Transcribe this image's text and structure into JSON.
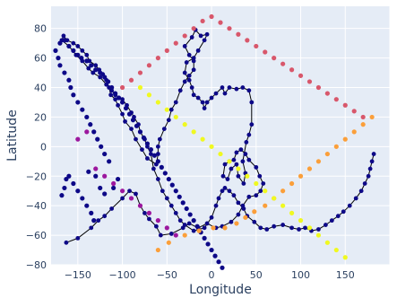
{
  "chart_data": {
    "type": "scatter",
    "title": "",
    "xlabel": "Longitude",
    "ylabel": "Latitude",
    "xlim": [
      -180,
      200
    ],
    "ylim": [
      -80,
      95
    ],
    "xticks": [
      -200,
      -150,
      -100,
      -50,
      0,
      50,
      100,
      150,
      200
    ],
    "yticks": [
      -80,
      -60,
      -40,
      -20,
      0,
      20,
      40,
      60,
      80
    ],
    "grid": true,
    "legend": "none",
    "colors": {
      "background": "#e5ecf6",
      "grid": "#ffffff",
      "path": "#000000",
      "node": "#0d0887"
    },
    "path": [
      [
        -163,
        -65
      ],
      [
        -150,
        -62
      ],
      [
        -135,
        -55
      ],
      [
        -127,
        -50
      ],
      [
        -120,
        -47
      ],
      [
        -112,
        -42
      ],
      [
        -100,
        -35
      ],
      [
        -92,
        -30
      ],
      [
        -85,
        -32
      ],
      [
        -80,
        -40
      ],
      [
        -75,
        -45
      ],
      [
        -70,
        -49
      ],
      [
        -62,
        -54
      ],
      [
        -57,
        -60
      ],
      [
        -45,
        -59
      ],
      [
        -32,
        -55
      ],
      [
        -25,
        -52
      ],
      [
        -15,
        -55
      ],
      [
        -5,
        -52
      ],
      [
        5,
        -55
      ],
      [
        12,
        -54
      ],
      [
        22,
        -51
      ],
      [
        30,
        -46
      ],
      [
        35,
        -40
      ],
      [
        42,
        -34
      ],
      [
        50,
        -33
      ],
      [
        55,
        -30
      ],
      [
        58,
        -25
      ],
      [
        54,
        -20
      ],
      [
        50,
        -14
      ],
      [
        42,
        -9
      ],
      [
        38,
        -5
      ],
      [
        33,
        -2
      ],
      [
        28,
        -4
      ],
      [
        25,
        -9
      ],
      [
        20,
        -10
      ],
      [
        15,
        -12
      ],
      [
        13,
        -20
      ],
      [
        18,
        -22
      ],
      [
        22,
        -15
      ],
      [
        28,
        -12
      ],
      [
        30,
        -20
      ],
      [
        36,
        -25
      ],
      [
        38,
        -18
      ],
      [
        35,
        -10
      ],
      [
        39,
        3
      ],
      [
        42,
        8
      ],
      [
        45,
        15
      ],
      [
        45,
        30
      ],
      [
        42,
        38
      ],
      [
        35,
        40
      ],
      [
        28,
        39
      ],
      [
        20,
        40
      ],
      [
        15,
        36
      ],
      [
        12,
        40
      ],
      [
        5,
        36
      ],
      [
        0,
        33
      ],
      [
        -5,
        30
      ],
      [
        -8,
        26
      ],
      [
        -10,
        30
      ],
      [
        -15,
        33
      ],
      [
        -20,
        35
      ],
      [
        -22,
        40
      ],
      [
        -25,
        45
      ],
      [
        -30,
        50
      ],
      [
        -28,
        57
      ],
      [
        -20,
        60
      ],
      [
        -15,
        65
      ],
      [
        -8,
        72
      ],
      [
        -5,
        76
      ],
      [
        -12,
        75
      ],
      [
        -18,
        79
      ],
      [
        -22,
        74
      ],
      [
        -30,
        68
      ],
      [
        -25,
        62
      ],
      [
        -20,
        58
      ],
      [
        -20,
        52
      ],
      [
        -25,
        48
      ],
      [
        -30,
        44
      ],
      [
        -35,
        38
      ],
      [
        -40,
        30
      ],
      [
        -45,
        25
      ],
      [
        -48,
        18
      ],
      [
        -53,
        12
      ],
      [
        -58,
        5
      ],
      [
        -60,
        0
      ],
      [
        -60,
        -5
      ],
      [
        -62,
        -12
      ],
      [
        -72,
        -8
      ],
      [
        -78,
        -2
      ],
      [
        -85,
        5
      ],
      [
        -90,
        12
      ],
      [
        -97,
        17
      ],
      [
        -100,
        22
      ],
      [
        -105,
        28
      ],
      [
        -108,
        32
      ],
      [
        -113,
        35
      ],
      [
        -115,
        40
      ],
      [
        -118,
        45
      ],
      [
        -122,
        49
      ],
      [
        -126,
        52
      ],
      [
        -130,
        55
      ],
      [
        -137,
        58
      ],
      [
        -140,
        62
      ],
      [
        -145,
        65
      ],
      [
        -150,
        68
      ],
      [
        -155,
        70
      ],
      [
        -162,
        72
      ],
      [
        -166,
        75
      ],
      [
        -168,
        72
      ],
      [
        -160,
        68
      ],
      [
        -152,
        62
      ],
      [
        -145,
        58
      ],
      [
        -138,
        53
      ],
      [
        -133,
        50
      ],
      [
        -125,
        47
      ],
      [
        -118,
        42
      ],
      [
        -112,
        38
      ],
      [
        -108,
        35
      ],
      [
        -100,
        32
      ],
      [
        -95,
        28
      ],
      [
        -90,
        23
      ],
      [
        -87,
        20
      ],
      [
        -82,
        15
      ],
      [
        -80,
        10
      ],
      [
        -75,
        5
      ],
      [
        -72,
        0
      ],
      [
        -68,
        -5
      ],
      [
        -65,
        -15
      ],
      [
        -60,
        -22
      ],
      [
        -55,
        -30
      ],
      [
        -50,
        -35
      ],
      [
        -45,
        -40
      ],
      [
        -40,
        -45
      ],
      [
        -35,
        -50
      ],
      [
        -30,
        -53
      ],
      [
        -20,
        -57
      ],
      [
        -8,
        -55
      ],
      [
        0,
        -48
      ],
      [
        5,
        -40
      ],
      [
        8,
        -35
      ],
      [
        12,
        -30
      ],
      [
        15,
        -28
      ],
      [
        20,
        -30
      ],
      [
        25,
        -33
      ],
      [
        30,
        -38
      ],
      [
        36,
        -42
      ],
      [
        40,
        -47
      ],
      [
        48,
        -51
      ],
      [
        55,
        -55
      ],
      [
        62,
        -56
      ],
      [
        70,
        -54
      ],
      [
        80,
        -53
      ],
      [
        90,
        -55
      ],
      [
        98,
        -56
      ],
      [
        105,
        -55
      ],
      [
        112,
        -57
      ],
      [
        120,
        -56
      ],
      [
        128,
        -53
      ],
      [
        135,
        -50
      ],
      [
        142,
        -47
      ],
      [
        148,
        -44
      ],
      [
        155,
        -40
      ],
      [
        162,
        -35
      ],
      [
        168,
        -30
      ],
      [
        172,
        -25
      ],
      [
        176,
        -20
      ],
      [
        178,
        -15
      ],
      [
        180,
        -10
      ],
      [
        182,
        -5
      ]
    ],
    "markers": [
      [
        -168,
        -33,
        "#0d0887"
      ],
      [
        -165,
        -28,
        "#0d0887"
      ],
      [
        -163,
        -22,
        "#0d0887"
      ],
      [
        -160,
        -20,
        "#0d0887"
      ],
      [
        -155,
        -25,
        "#0d0887"
      ],
      [
        -150,
        -30,
        "#0d0887"
      ],
      [
        -145,
        -35,
        "#0d0887"
      ],
      [
        -140,
        -40,
        "#0d0887"
      ],
      [
        -135,
        -45,
        "#0d0887"
      ],
      [
        -132,
        -50,
        "#0d0887"
      ],
      [
        -138,
        -17,
        "#0d0887"
      ],
      [
        -130,
        -20,
        "#0d0887"
      ],
      [
        -125,
        -28,
        "#0d0887"
      ],
      [
        -120,
        -32,
        "#0d0887"
      ],
      [
        -110,
        -28,
        "#0d0887"
      ],
      [
        -105,
        -22,
        "#0d0887"
      ],
      [
        -115,
        -10,
        "#0d0887"
      ],
      [
        -120,
        -5,
        "#0d0887"
      ],
      [
        -124,
        0,
        "#0d0887"
      ],
      [
        -128,
        5,
        "#0d0887"
      ],
      [
        -132,
        10,
        "#0d0887"
      ],
      [
        -136,
        15,
        "#0d0887"
      ],
      [
        -140,
        20,
        "#0d0887"
      ],
      [
        -145,
        25,
        "#0d0887"
      ],
      [
        -150,
        30,
        "#0d0887"
      ],
      [
        -155,
        35,
        "#0d0887"
      ],
      [
        -158,
        40,
        "#0d0887"
      ],
      [
        -160,
        45,
        "#0d0887"
      ],
      [
        -165,
        50,
        "#0d0887"
      ],
      [
        -170,
        55,
        "#0d0887"
      ],
      [
        -172,
        60,
        "#0d0887"
      ],
      [
        -175,
        65,
        "#0d0887"
      ],
      [
        -170,
        70,
        "#0d0887"
      ],
      [
        -165,
        72,
        "#0d0887"
      ],
      [
        -160,
        68,
        "#0d0887"
      ],
      [
        -155,
        65,
        "#0d0887"
      ],
      [
        -150,
        62,
        "#0d0887"
      ],
      [
        -146,
        60,
        "#0d0887"
      ],
      [
        -140,
        58,
        "#0d0887"
      ],
      [
        -135,
        55,
        "#0d0887"
      ],
      [
        -130,
        52,
        "#0d0887"
      ],
      [
        -125,
        50,
        "#0d0887"
      ],
      [
        -120,
        47,
        "#0d0887"
      ],
      [
        -116,
        44,
        "#0d0887"
      ],
      [
        -112,
        40,
        "#0d0887"
      ],
      [
        -108,
        36,
        "#0d0887"
      ],
      [
        -104,
        33,
        "#0d0887"
      ],
      [
        -100,
        30,
        "#0d0887"
      ],
      [
        -96,
        26,
        "#0d0887"
      ],
      [
        -92,
        22,
        "#0d0887"
      ],
      [
        -88,
        18,
        "#0d0887"
      ],
      [
        -84,
        14,
        "#0d0887"
      ],
      [
        -80,
        10,
        "#0d0887"
      ],
      [
        -76,
        6,
        "#0d0887"
      ],
      [
        -72,
        2,
        "#0d0887"
      ],
      [
        -68,
        -2,
        "#0d0887"
      ],
      [
        -64,
        -6,
        "#0d0887"
      ],
      [
        -60,
        -10,
        "#0d0887"
      ],
      [
        -56,
        -14,
        "#0d0887"
      ],
      [
        -52,
        -18,
        "#0d0887"
      ],
      [
        -48,
        -22,
        "#0d0887"
      ],
      [
        -44,
        -26,
        "#0d0887"
      ],
      [
        -40,
        -30,
        "#0d0887"
      ],
      [
        -36,
        -34,
        "#0d0887"
      ],
      [
        -32,
        -38,
        "#0d0887"
      ],
      [
        -28,
        -42,
        "#0d0887"
      ],
      [
        -24,
        -46,
        "#0d0887"
      ],
      [
        -20,
        -50,
        "#0d0887"
      ],
      [
        -16,
        -54,
        "#0d0887"
      ],
      [
        -12,
        -58,
        "#0d0887"
      ],
      [
        -8,
        -62,
        "#0d0887"
      ],
      [
        -4,
        -66,
        "#0d0887"
      ],
      [
        0,
        -70,
        "#0d0887"
      ],
      [
        4,
        -74,
        "#0d0887"
      ],
      [
        8,
        -78,
        "#0d0887"
      ],
      [
        12,
        -82,
        "#0d0887"
      ],
      [
        -60,
        -70,
        "#fb9f3a"
      ],
      [
        -48,
        -65,
        "#fb9f3a"
      ],
      [
        -30,
        -60,
        "#fb9f3a"
      ],
      [
        -14,
        -57,
        "#fb9f3a"
      ],
      [
        2,
        -55,
        "#fb9f3a"
      ],
      [
        15,
        -55,
        "#fb9f3a"
      ],
      [
        28,
        -52,
        "#fb9f3a"
      ],
      [
        38,
        -48,
        "#fb9f3a"
      ],
      [
        48,
        -44,
        "#fb9f3a"
      ],
      [
        60,
        -40,
        "#fb9f3a"
      ],
      [
        70,
        -35,
        "#fb9f3a"
      ],
      [
        80,
        -30,
        "#fb9f3a"
      ],
      [
        90,
        -25,
        "#fb9f3a"
      ],
      [
        100,
        -20,
        "#fb9f3a"
      ],
      [
        110,
        -15,
        "#fb9f3a"
      ],
      [
        120,
        -10,
        "#fb9f3a"
      ],
      [
        130,
        -5,
        "#fb9f3a"
      ],
      [
        140,
        0,
        "#fb9f3a"
      ],
      [
        150,
        5,
        "#fb9f3a"
      ],
      [
        160,
        10,
        "#fb9f3a"
      ],
      [
        170,
        15,
        "#fb9f3a"
      ],
      [
        180,
        20,
        "#fb9f3a"
      ],
      [
        -100,
        40,
        "#d8576b"
      ],
      [
        -90,
        45,
        "#d8576b"
      ],
      [
        -80,
        50,
        "#d8576b"
      ],
      [
        -70,
        55,
        "#d8576b"
      ],
      [
        -60,
        60,
        "#d8576b"
      ],
      [
        -50,
        65,
        "#d8576b"
      ],
      [
        -40,
        70,
        "#d8576b"
      ],
      [
        -30,
        75,
        "#d8576b"
      ],
      [
        -20,
        80,
        "#d8576b"
      ],
      [
        -10,
        85,
        "#d8576b"
      ],
      [
        0,
        88,
        "#d8576b"
      ],
      [
        10,
        84,
        "#d8576b"
      ],
      [
        20,
        80,
        "#d8576b"
      ],
      [
        30,
        76,
        "#d8576b"
      ],
      [
        40,
        72,
        "#d8576b"
      ],
      [
        50,
        68,
        "#d8576b"
      ],
      [
        60,
        64,
        "#d8576b"
      ],
      [
        70,
        60,
        "#d8576b"
      ],
      [
        80,
        56,
        "#d8576b"
      ],
      [
        90,
        52,
        "#d8576b"
      ],
      [
        100,
        48,
        "#d8576b"
      ],
      [
        110,
        44,
        "#d8576b"
      ],
      [
        120,
        40,
        "#d8576b"
      ],
      [
        130,
        36,
        "#d8576b"
      ],
      [
        140,
        32,
        "#d8576b"
      ],
      [
        150,
        28,
        "#d8576b"
      ],
      [
        160,
        24,
        "#d8576b"
      ],
      [
        170,
        20,
        "#d8576b"
      ],
      [
        -150,
        5,
        "#9c179e"
      ],
      [
        -140,
        10,
        "#9c179e"
      ],
      [
        -130,
        -15,
        "#9c179e"
      ],
      [
        -120,
        -20,
        "#9c179e"
      ],
      [
        -110,
        -25,
        "#9c179e"
      ],
      [
        -100,
        -30,
        "#9c179e"
      ],
      [
        -90,
        -35,
        "#9c179e"
      ],
      [
        -80,
        -40,
        "#9c179e"
      ],
      [
        -70,
        -45,
        "#9c179e"
      ],
      [
        -60,
        -50,
        "#9c179e"
      ],
      [
        -50,
        -55,
        "#9c179e"
      ],
      [
        -40,
        -60,
        "#9c179e"
      ],
      [
        -80,
        40,
        "#f0f921"
      ],
      [
        -70,
        35,
        "#f0f921"
      ],
      [
        -60,
        30,
        "#f0f921"
      ],
      [
        -50,
        25,
        "#f0f921"
      ],
      [
        -40,
        20,
        "#f0f921"
      ],
      [
        -30,
        15,
        "#f0f921"
      ],
      [
        -20,
        10,
        "#f0f921"
      ],
      [
        -10,
        5,
        "#f0f921"
      ],
      [
        0,
        0,
        "#f0f921"
      ],
      [
        10,
        -5,
        "#f0f921"
      ],
      [
        20,
        -10,
        "#f0f921"
      ],
      [
        30,
        -15,
        "#f0f921"
      ],
      [
        40,
        -20,
        "#f0f921"
      ],
      [
        50,
        -25,
        "#f0f921"
      ],
      [
        60,
        -30,
        "#f0f921"
      ],
      [
        70,
        -35,
        "#f0f921"
      ],
      [
        80,
        -40,
        "#f0f921"
      ],
      [
        90,
        -45,
        "#f0f921"
      ],
      [
        100,
        -50,
        "#f0f921"
      ],
      [
        110,
        -55,
        "#f0f921"
      ],
      [
        120,
        -60,
        "#f0f921"
      ],
      [
        130,
        -65,
        "#f0f921"
      ],
      [
        140,
        -70,
        "#f0f921"
      ],
      [
        150,
        -75,
        "#f0f921"
      ]
    ]
  }
}
